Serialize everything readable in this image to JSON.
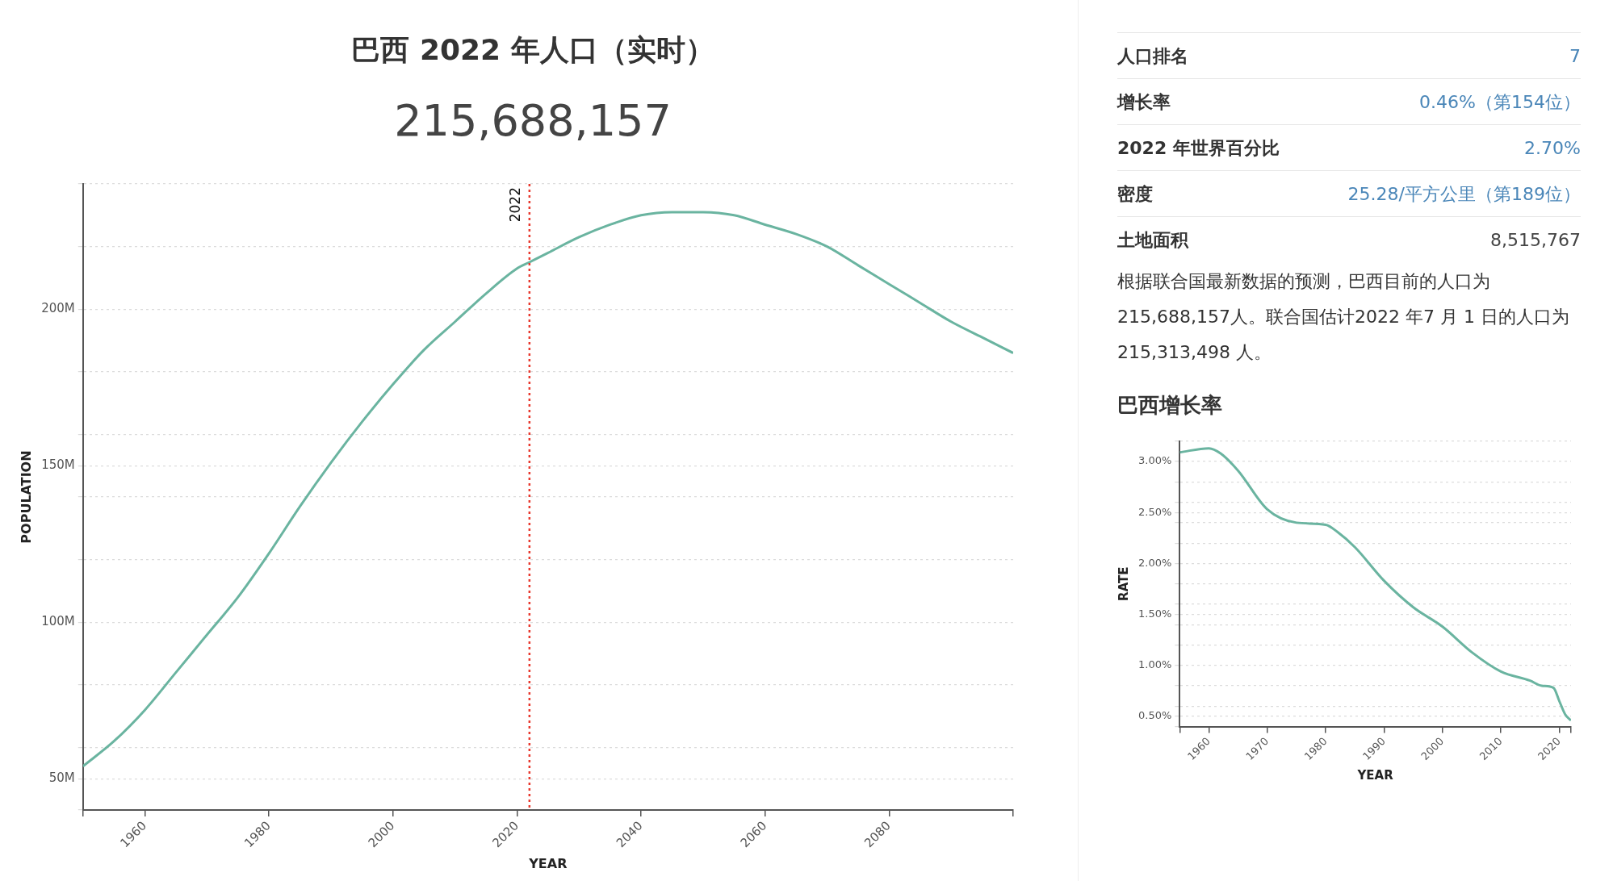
{
  "chart_data": [
    {
      "type": "line",
      "title": "巴西 2022 年人口（实时）",
      "subtitle": "215,688,157",
      "xlabel": "YEAR",
      "ylabel": "POPULATION",
      "x": [
        1950,
        1955,
        1960,
        1965,
        1970,
        1975,
        1980,
        1985,
        1990,
        1995,
        2000,
        2005,
        2010,
        2015,
        2020,
        2022,
        2025,
        2030,
        2035,
        2040,
        2045,
        2050,
        2055,
        2060,
        2065,
        2070,
        2075,
        2080,
        2085,
        2090,
        2095,
        2100
      ],
      "values": [
        54000000,
        62000000,
        72000000,
        84000000,
        96000000,
        108000000,
        122000000,
        137000000,
        151000000,
        164000000,
        176000000,
        187000000,
        196000000,
        205000000,
        213000000,
        215000000,
        218000000,
        223000000,
        227000000,
        230000000,
        231000000,
        231000000,
        230000000,
        227000000,
        224000000,
        220000000,
        214000000,
        208000000,
        202000000,
        196000000,
        191000000,
        186000000
      ],
      "color": "#6ab4a0",
      "xlim": [
        1950,
        2100
      ],
      "xticks": [
        {
          "value": 1950,
          "label": null
        },
        1960,
        1980,
        2000,
        2020,
        2040,
        2060,
        2080,
        {
          "value": 2100,
          "label": null
        }
      ],
      "ylim": [
        40000000,
        240000000
      ],
      "yticks": [
        {
          "value": 40000000,
          "label": null
        },
        {
          "value": 50000000,
          "label": "50M"
        },
        {
          "value": 60000000,
          "label": null
        },
        {
          "value": 80000000,
          "label": null
        },
        {
          "value": 100000000,
          "label": "100M"
        },
        {
          "value": 120000000,
          "label": null
        },
        {
          "value": 140000000,
          "label": null
        },
        {
          "value": 150000000,
          "label": "150M"
        },
        {
          "value": 160000000,
          "label": null
        },
        {
          "value": 180000000,
          "label": null
        },
        {
          "value": 200000000,
          "label": "200M"
        },
        {
          "value": 220000000,
          "label": null
        },
        {
          "value": 240000000,
          "label": null
        }
      ],
      "grid": "y",
      "legend": false,
      "ref_lines": [
        {
          "axis": "x",
          "value": 2022,
          "label": "2022",
          "color": "#e8392e",
          "line_style": "dotted"
        }
      ]
    },
    {
      "type": "other",
      "annotations": [
        "人口排名",
        "7",
        "增长率",
        "0.46%（第154位）",
        "2022 年世界百分比",
        "2.70%",
        "密度",
        "25.28/平方公里（第189位）",
        "土地面积",
        "8,515,767",
        "根据联合国最新数据的预测，巴西目前的人口为215,688,157人。联合国估计2022 年7 月 1 日的人口为215,313,498 人。"
      ]
    },
    {
      "type": "line",
      "title": "巴西增长率",
      "xlabel": "YEAR",
      "ylabel": "RATE",
      "x": [
        1955,
        1960,
        1962,
        1965,
        1970,
        1975,
        1980,
        1982,
        1985,
        1990,
        1995,
        2000,
        2005,
        2010,
        2015,
        2017,
        2019,
        2020,
        2021,
        2022
      ],
      "values": [
        3.09,
        3.13,
        3.08,
        2.91,
        2.53,
        2.4,
        2.38,
        2.31,
        2.16,
        1.83,
        1.57,
        1.38,
        1.13,
        0.94,
        0.85,
        0.8,
        0.78,
        0.65,
        0.52,
        0.46
      ],
      "color": "#6ab4a0",
      "xlim": [
        1955,
        2022
      ],
      "xticks": [
        {
          "value": 1955,
          "label": null
        },
        1960,
        1970,
        1980,
        1990,
        2000,
        2010,
        2020,
        {
          "value": 2022,
          "label": null
        }
      ],
      "ylim": [
        0.4,
        3.2
      ],
      "yticks": [
        {
          "value": 0.4,
          "label": null
        },
        {
          "value": 0.5,
          "label": "0.50%"
        },
        {
          "value": 0.6,
          "label": null
        },
        {
          "value": 0.8,
          "label": null
        },
        {
          "value": 1,
          "label": "1.00%"
        },
        {
          "value": 1.2,
          "label": null
        },
        {
          "value": 1.4,
          "label": null
        },
        {
          "value": 1.5,
          "label": "1.50%"
        },
        {
          "value": 1.6,
          "label": null
        },
        {
          "value": 1.8,
          "label": null
        },
        {
          "value": 2,
          "label": "2.00%"
        },
        {
          "value": 2.2,
          "label": null
        },
        {
          "value": 2.4,
          "label": null
        },
        {
          "value": 2.5,
          "label": "2.50%"
        },
        {
          "value": 2.6,
          "label": null
        },
        {
          "value": 2.8,
          "label": null
        },
        {
          "value": 3,
          "label": "3.00%"
        },
        {
          "value": 3.2,
          "label": null
        }
      ],
      "grid": "y",
      "legend": false
    }
  ]
}
